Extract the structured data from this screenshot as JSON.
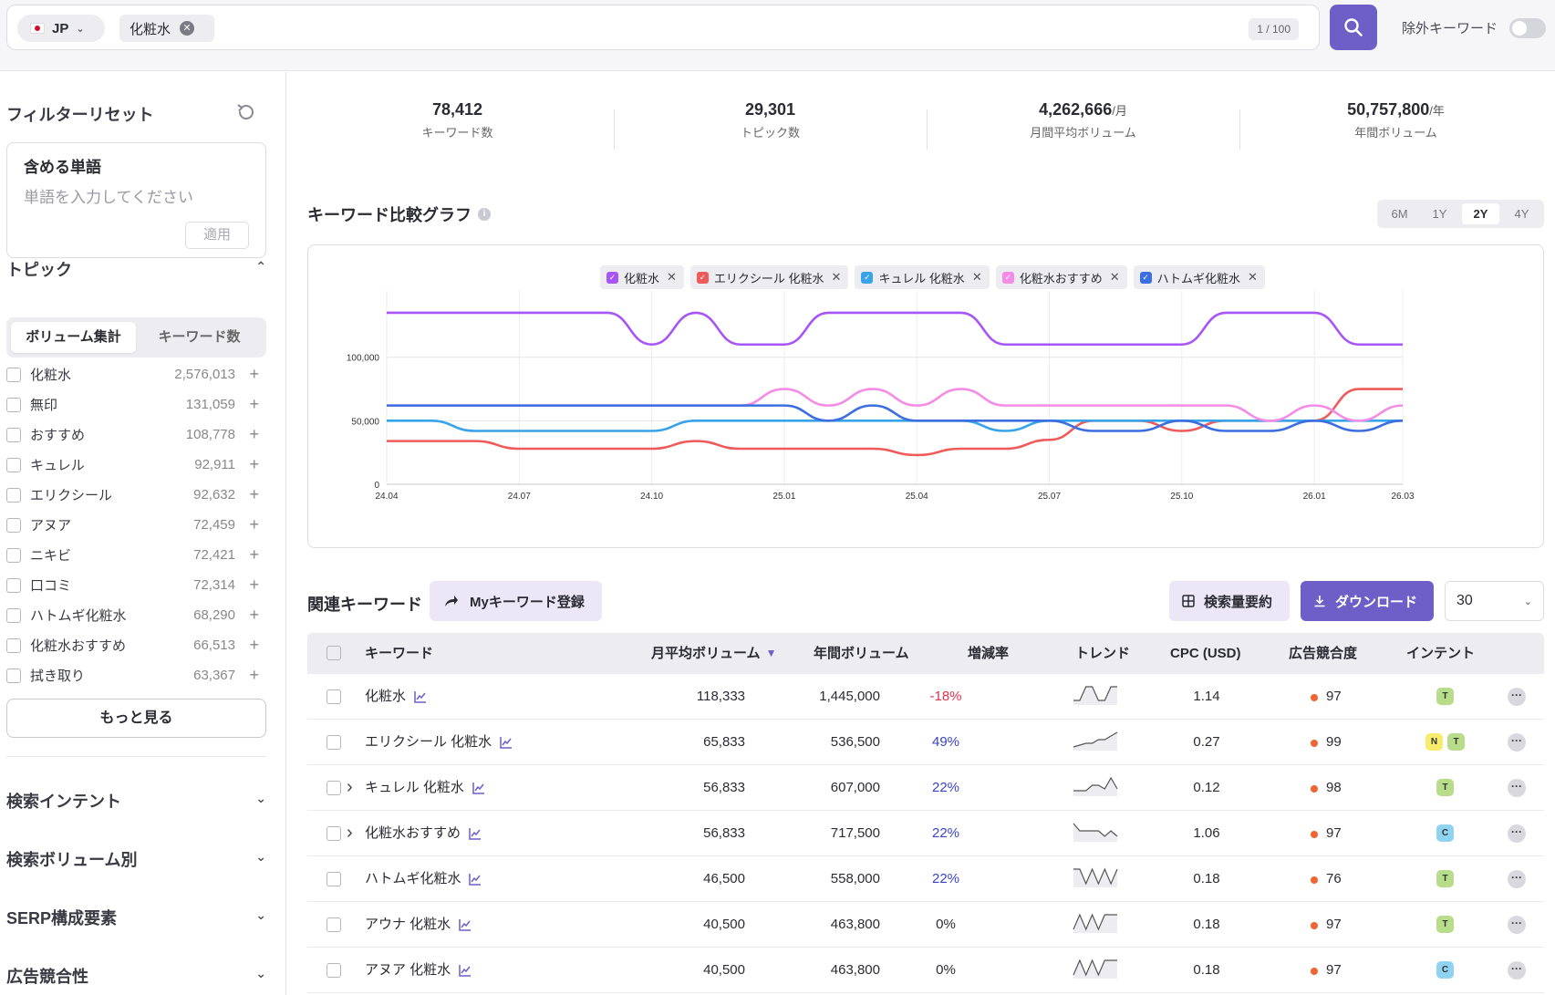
{
  "search": {
    "country": "JP",
    "keyword_chip": "化粧水",
    "count": "1 / 100",
    "exclude_label": "除外キーワード"
  },
  "sidebar": {
    "filter_reset": "フィルターリセット",
    "include_title": "含める単語",
    "include_placeholder": "単語を入力してください",
    "apply": "適用",
    "topic_title": "トピック",
    "seg_volume": "ボリューム集計",
    "seg_keywords": "キーワード数",
    "topics": [
      {
        "name": "化粧水",
        "value": "2,576,013"
      },
      {
        "name": "無印",
        "value": "131,059"
      },
      {
        "name": "おすすめ",
        "value": "108,778"
      },
      {
        "name": "キュレル",
        "value": "92,911"
      },
      {
        "name": "エリクシール",
        "value": "92,632"
      },
      {
        "name": "アヌア",
        "value": "72,459"
      },
      {
        "name": "ニキビ",
        "value": "72,421"
      },
      {
        "name": "口コミ",
        "value": "72,314"
      },
      {
        "name": "ハトムギ化粧水",
        "value": "68,290"
      },
      {
        "name": "化粧水おすすめ",
        "value": "66,513"
      },
      {
        "name": "拭き取り",
        "value": "63,367"
      }
    ],
    "more": "もっと見る",
    "sections": [
      "検索インテント",
      "検索ボリューム別",
      "SERP構成要素",
      "広告競合性"
    ]
  },
  "stats": [
    {
      "value": "78,412",
      "unit": "",
      "label": "キーワード数"
    },
    {
      "value": "29,301",
      "unit": "",
      "label": "トピック数"
    },
    {
      "value": "4,262,666",
      "unit": "/月",
      "label": "月間平均ボリューム"
    },
    {
      "value": "50,757,800",
      "unit": "/年",
      "label": "年間ボリューム"
    }
  ],
  "graph": {
    "title": "キーワード比較グラフ",
    "ranges": [
      "6M",
      "1Y",
      "2Y",
      "4Y"
    ],
    "active_range": "2Y"
  },
  "chart_data": {
    "type": "line",
    "x": [
      "24.04",
      "24.05",
      "24.06",
      "24.07",
      "24.08",
      "24.09",
      "24.10",
      "24.11",
      "24.12",
      "25.01",
      "25.02",
      "25.03",
      "25.04",
      "25.05",
      "25.06",
      "25.07",
      "25.08",
      "25.09",
      "25.10",
      "25.11",
      "25.12",
      "26.01",
      "26.02",
      "26.03"
    ],
    "xticks": [
      "24.04",
      "24.07",
      "24.10",
      "25.01",
      "25.04",
      "25.07",
      "25.10",
      "26.01",
      "26.03"
    ],
    "yticks": [
      "0",
      "50,000",
      "100,000"
    ],
    "ylim": [
      0,
      145000
    ],
    "grid": true,
    "legend": "top-center",
    "series": [
      {
        "name": "化粧水",
        "color": "#a855f7",
        "values": [
          135000,
          135000,
          135000,
          135000,
          135000,
          135000,
          110000,
          135000,
          110000,
          110000,
          135000,
          135000,
          135000,
          135000,
          110000,
          110000,
          110000,
          110000,
          110000,
          135000,
          135000,
          135000,
          110000,
          110000
        ]
      },
      {
        "name": "エリクシール 化粧水",
        "color": "#ef5a5a",
        "values": [
          34000,
          34000,
          34000,
          28000,
          28000,
          28000,
          28000,
          34000,
          28000,
          28000,
          28000,
          28000,
          23000,
          28000,
          28000,
          35000,
          50000,
          50000,
          42000,
          50000,
          50000,
          50000,
          75000,
          75000
        ]
      },
      {
        "name": "キュレル 化粧水",
        "color": "#38a3e8",
        "values": [
          50000,
          50000,
          42000,
          42000,
          42000,
          42000,
          42000,
          50000,
          50000,
          50000,
          50000,
          50000,
          50000,
          50000,
          42000,
          50000,
          50000,
          50000,
          50000,
          50000,
          50000,
          50000,
          50000,
          50000
        ]
      },
      {
        "name": "化粧水おすすめ",
        "color": "#f48ce6",
        "values": [
          62000,
          62000,
          62000,
          62000,
          62000,
          62000,
          62000,
          62000,
          62000,
          75000,
          62000,
          75000,
          62000,
          75000,
          62000,
          62000,
          62000,
          62000,
          62000,
          62000,
          50000,
          62000,
          50000,
          62000
        ]
      },
      {
        "name": "ハトムギ化粧水",
        "color": "#3b6ee0",
        "values": [
          62000,
          62000,
          62000,
          62000,
          62000,
          62000,
          62000,
          62000,
          62000,
          62000,
          50000,
          62000,
          50000,
          50000,
          50000,
          50000,
          42000,
          42000,
          50000,
          42000,
          42000,
          50000,
          42000,
          50000
        ]
      }
    ]
  },
  "related": {
    "title": "関連キーワード",
    "mykw_button": "Myキーワード登録",
    "summary_button": "検索量要約",
    "download_button": "ダウンロード",
    "page_size": "30",
    "headers": [
      "キーワード",
      "月平均ボリューム",
      "年間ボリューム",
      "増減率",
      "トレンド",
      "CPC (USD)",
      "広告競合度",
      "インテント"
    ],
    "rows": [
      {
        "keyword": "化粧水",
        "monthly": "118,333",
        "yearly": "1,445,000",
        "change": "-18%",
        "cpc": "1.14",
        "competition": "97",
        "intent": [
          "T"
        ],
        "expand": false,
        "trend": [
          5,
          5,
          20,
          20,
          5,
          5,
          20,
          20
        ]
      },
      {
        "keyword": "エリクシール 化粧水",
        "monthly": "65,833",
        "yearly": "536,500",
        "change": "49%",
        "cpc": "0.27",
        "competition": "99",
        "intent": [
          "N",
          "T"
        ],
        "expand": false,
        "trend": [
          4,
          6,
          8,
          8,
          12,
          12,
          16,
          20
        ]
      },
      {
        "keyword": "キュレル 化粧水",
        "monthly": "56,833",
        "yearly": "607,000",
        "change": "22%",
        "cpc": "0.12",
        "competition": "98",
        "intent": [
          "T"
        ],
        "expand": true,
        "trend": [
          6,
          6,
          6,
          12,
          12,
          8,
          20,
          8
        ]
      },
      {
        "keyword": "化粧水おすすめ",
        "monthly": "56,833",
        "yearly": "717,500",
        "change": "22%",
        "cpc": "1.06",
        "competition": "97",
        "intent": [
          "C"
        ],
        "expand": true,
        "trend": [
          20,
          12,
          12,
          12,
          12,
          6,
          12,
          6
        ]
      },
      {
        "keyword": "ハトムギ化粧水",
        "monthly": "46,500",
        "yearly": "558,000",
        "change": "22%",
        "cpc": "0.18",
        "competition": "76",
        "intent": [
          "T"
        ],
        "expand": false,
        "trend": [
          20,
          20,
          4,
          20,
          4,
          20,
          4,
          20
        ]
      },
      {
        "keyword": "アウナ 化粧水",
        "monthly": "40,500",
        "yearly": "463,800",
        "change": "0%",
        "cpc": "0.18",
        "competition": "97",
        "intent": [
          "T"
        ],
        "expand": false,
        "trend": [
          4,
          20,
          4,
          20,
          4,
          20,
          20,
          20
        ]
      },
      {
        "keyword": "アヌア 化粧水",
        "monthly": "40,500",
        "yearly": "463,800",
        "change": "0%",
        "cpc": "0.18",
        "competition": "97",
        "intent": [
          "C"
        ],
        "expand": false,
        "trend": [
          4,
          20,
          4,
          20,
          4,
          20,
          20,
          20
        ]
      }
    ]
  },
  "colors": {
    "accent": "#6d5fc7",
    "negative": "#e0334c",
    "positive": "#3b43c9",
    "intent_T": "#b8dd8a",
    "intent_N": "#f7ec6d",
    "intent_C": "#8fd3f0"
  }
}
